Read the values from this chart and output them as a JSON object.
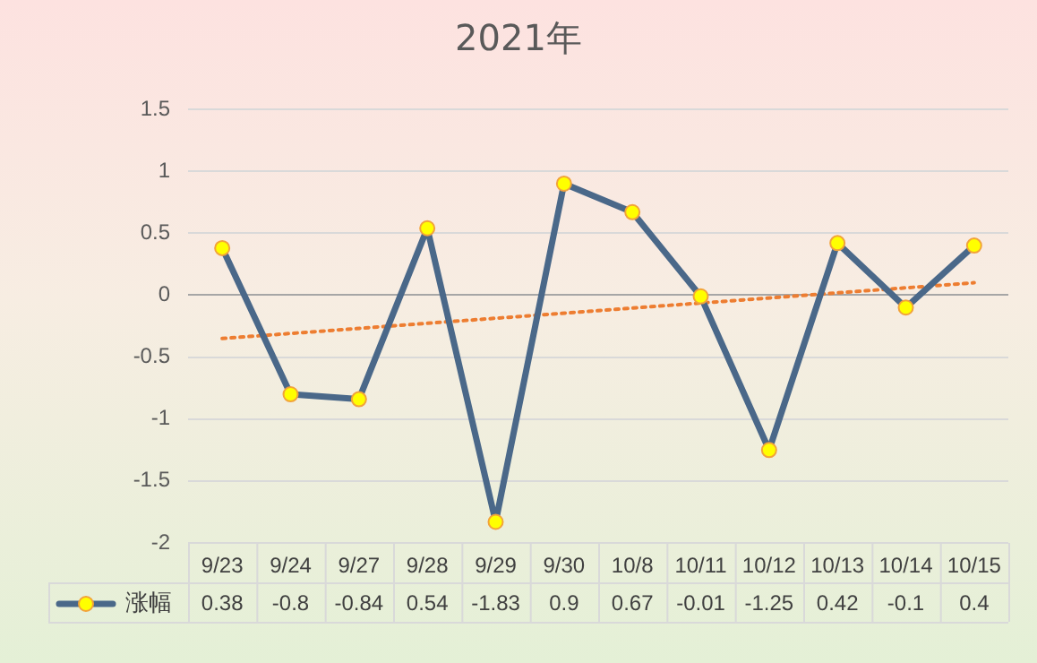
{
  "chart_data": {
    "type": "line",
    "title": "2021年",
    "categories": [
      "9/23",
      "9/24",
      "9/27",
      "9/28",
      "9/29",
      "9/30",
      "10/8",
      "10/11",
      "10/12",
      "10/13",
      "10/14",
      "10/15"
    ],
    "series": [
      {
        "name": "涨幅",
        "color": "#4a6889",
        "values": [
          0.38,
          -0.8,
          -0.84,
          0.54,
          -1.83,
          0.9,
          0.67,
          -0.01,
          -1.25,
          0.42,
          -0.1,
          0.4
        ],
        "value_labels": [
          "0.38",
          "-0.8",
          "-0.84",
          "0.54",
          "-1.83",
          "0.9",
          "0.67",
          "-0.01",
          "-1.25",
          "0.42",
          "-0.1",
          "0.4"
        ]
      },
      {
        "type": "line",
        "color": "#ed7d31",
        "line_style": "dotted",
        "marker": "none",
        "x": [
          "9/23",
          "10/15"
        ],
        "values": [
          -0.35,
          0.1
        ]
      }
    ],
    "ylim": [
      -2,
      1.5
    ],
    "yticks": [
      -2,
      -1.5,
      -1,
      -0.5,
      0,
      0.5,
      1,
      1.5
    ],
    "grid": "y",
    "legend": "bottom",
    "marker": "circle",
    "line_style": "solid"
  }
}
